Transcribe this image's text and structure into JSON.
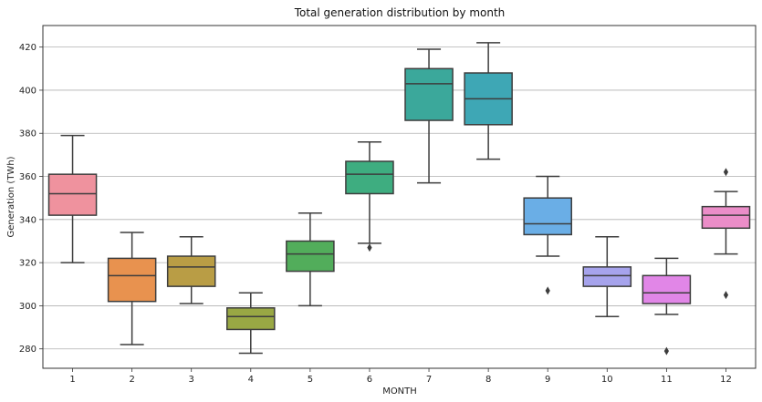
{
  "chart_data": {
    "type": "box",
    "title": "Total generation distribution by month",
    "xlabel": "MONTH",
    "ylabel": "Generation (TWh)",
    "ylim": [
      271,
      430
    ],
    "yticks": [
      280,
      300,
      320,
      340,
      360,
      380,
      400,
      420
    ],
    "grid": "horizontal",
    "categories": [
      "1",
      "2",
      "3",
      "4",
      "5",
      "6",
      "7",
      "8",
      "9",
      "10",
      "11",
      "12"
    ],
    "boxes": [
      {
        "whisker_low": 320,
        "q1": 342,
        "median": 352,
        "q3": 361,
        "whisker_high": 379,
        "outliers": [],
        "color": "#ef929e"
      },
      {
        "whisker_low": 282,
        "q1": 302,
        "median": 314,
        "q3": 322,
        "whisker_high": 334,
        "outliers": [],
        "color": "#e8924f"
      },
      {
        "whisker_low": 301,
        "q1": 309,
        "median": 318,
        "q3": 323,
        "whisker_high": 332,
        "outliers": [],
        "color": "#b99d45"
      },
      {
        "whisker_low": 278,
        "q1": 289,
        "median": 295,
        "q3": 299,
        "whisker_high": 306,
        "outliers": [],
        "color": "#99a844"
      },
      {
        "whisker_low": 300,
        "q1": 316,
        "median": 324,
        "q3": 330,
        "whisker_high": 343,
        "outliers": [],
        "color": "#52ad5b"
      },
      {
        "whisker_low": 329,
        "q1": 352,
        "median": 361,
        "q3": 367,
        "whisker_high": 376,
        "outliers": [
          327
        ],
        "color": "#3ead80"
      },
      {
        "whisker_low": 357,
        "q1": 386,
        "median": 403,
        "q3": 410,
        "whisker_high": 419,
        "outliers": [],
        "color": "#3ba89b"
      },
      {
        "whisker_low": 368,
        "q1": 384,
        "median": 396,
        "q3": 408,
        "whisker_high": 422,
        "outliers": [],
        "color": "#3ea7b5"
      },
      {
        "whisker_low": 323,
        "q1": 333,
        "median": 338,
        "q3": 350,
        "whisker_high": 360,
        "outliers": [
          307
        ],
        "color": "#6aaee6"
      },
      {
        "whisker_low": 295,
        "q1": 309,
        "median": 314,
        "q3": 318,
        "whisker_high": 332,
        "outliers": [],
        "color": "#a6a3ec"
      },
      {
        "whisker_low": 296,
        "q1": 301,
        "median": 306,
        "q3": 314,
        "whisker_high": 322,
        "outliers": [
          279
        ],
        "color": "#e186e7"
      },
      {
        "whisker_low": 324,
        "q1": 336,
        "median": 342,
        "q3": 346,
        "whisker_high": 353,
        "outliers": [
          362,
          305
        ],
        "color": "#eb8dc8"
      }
    ]
  }
}
